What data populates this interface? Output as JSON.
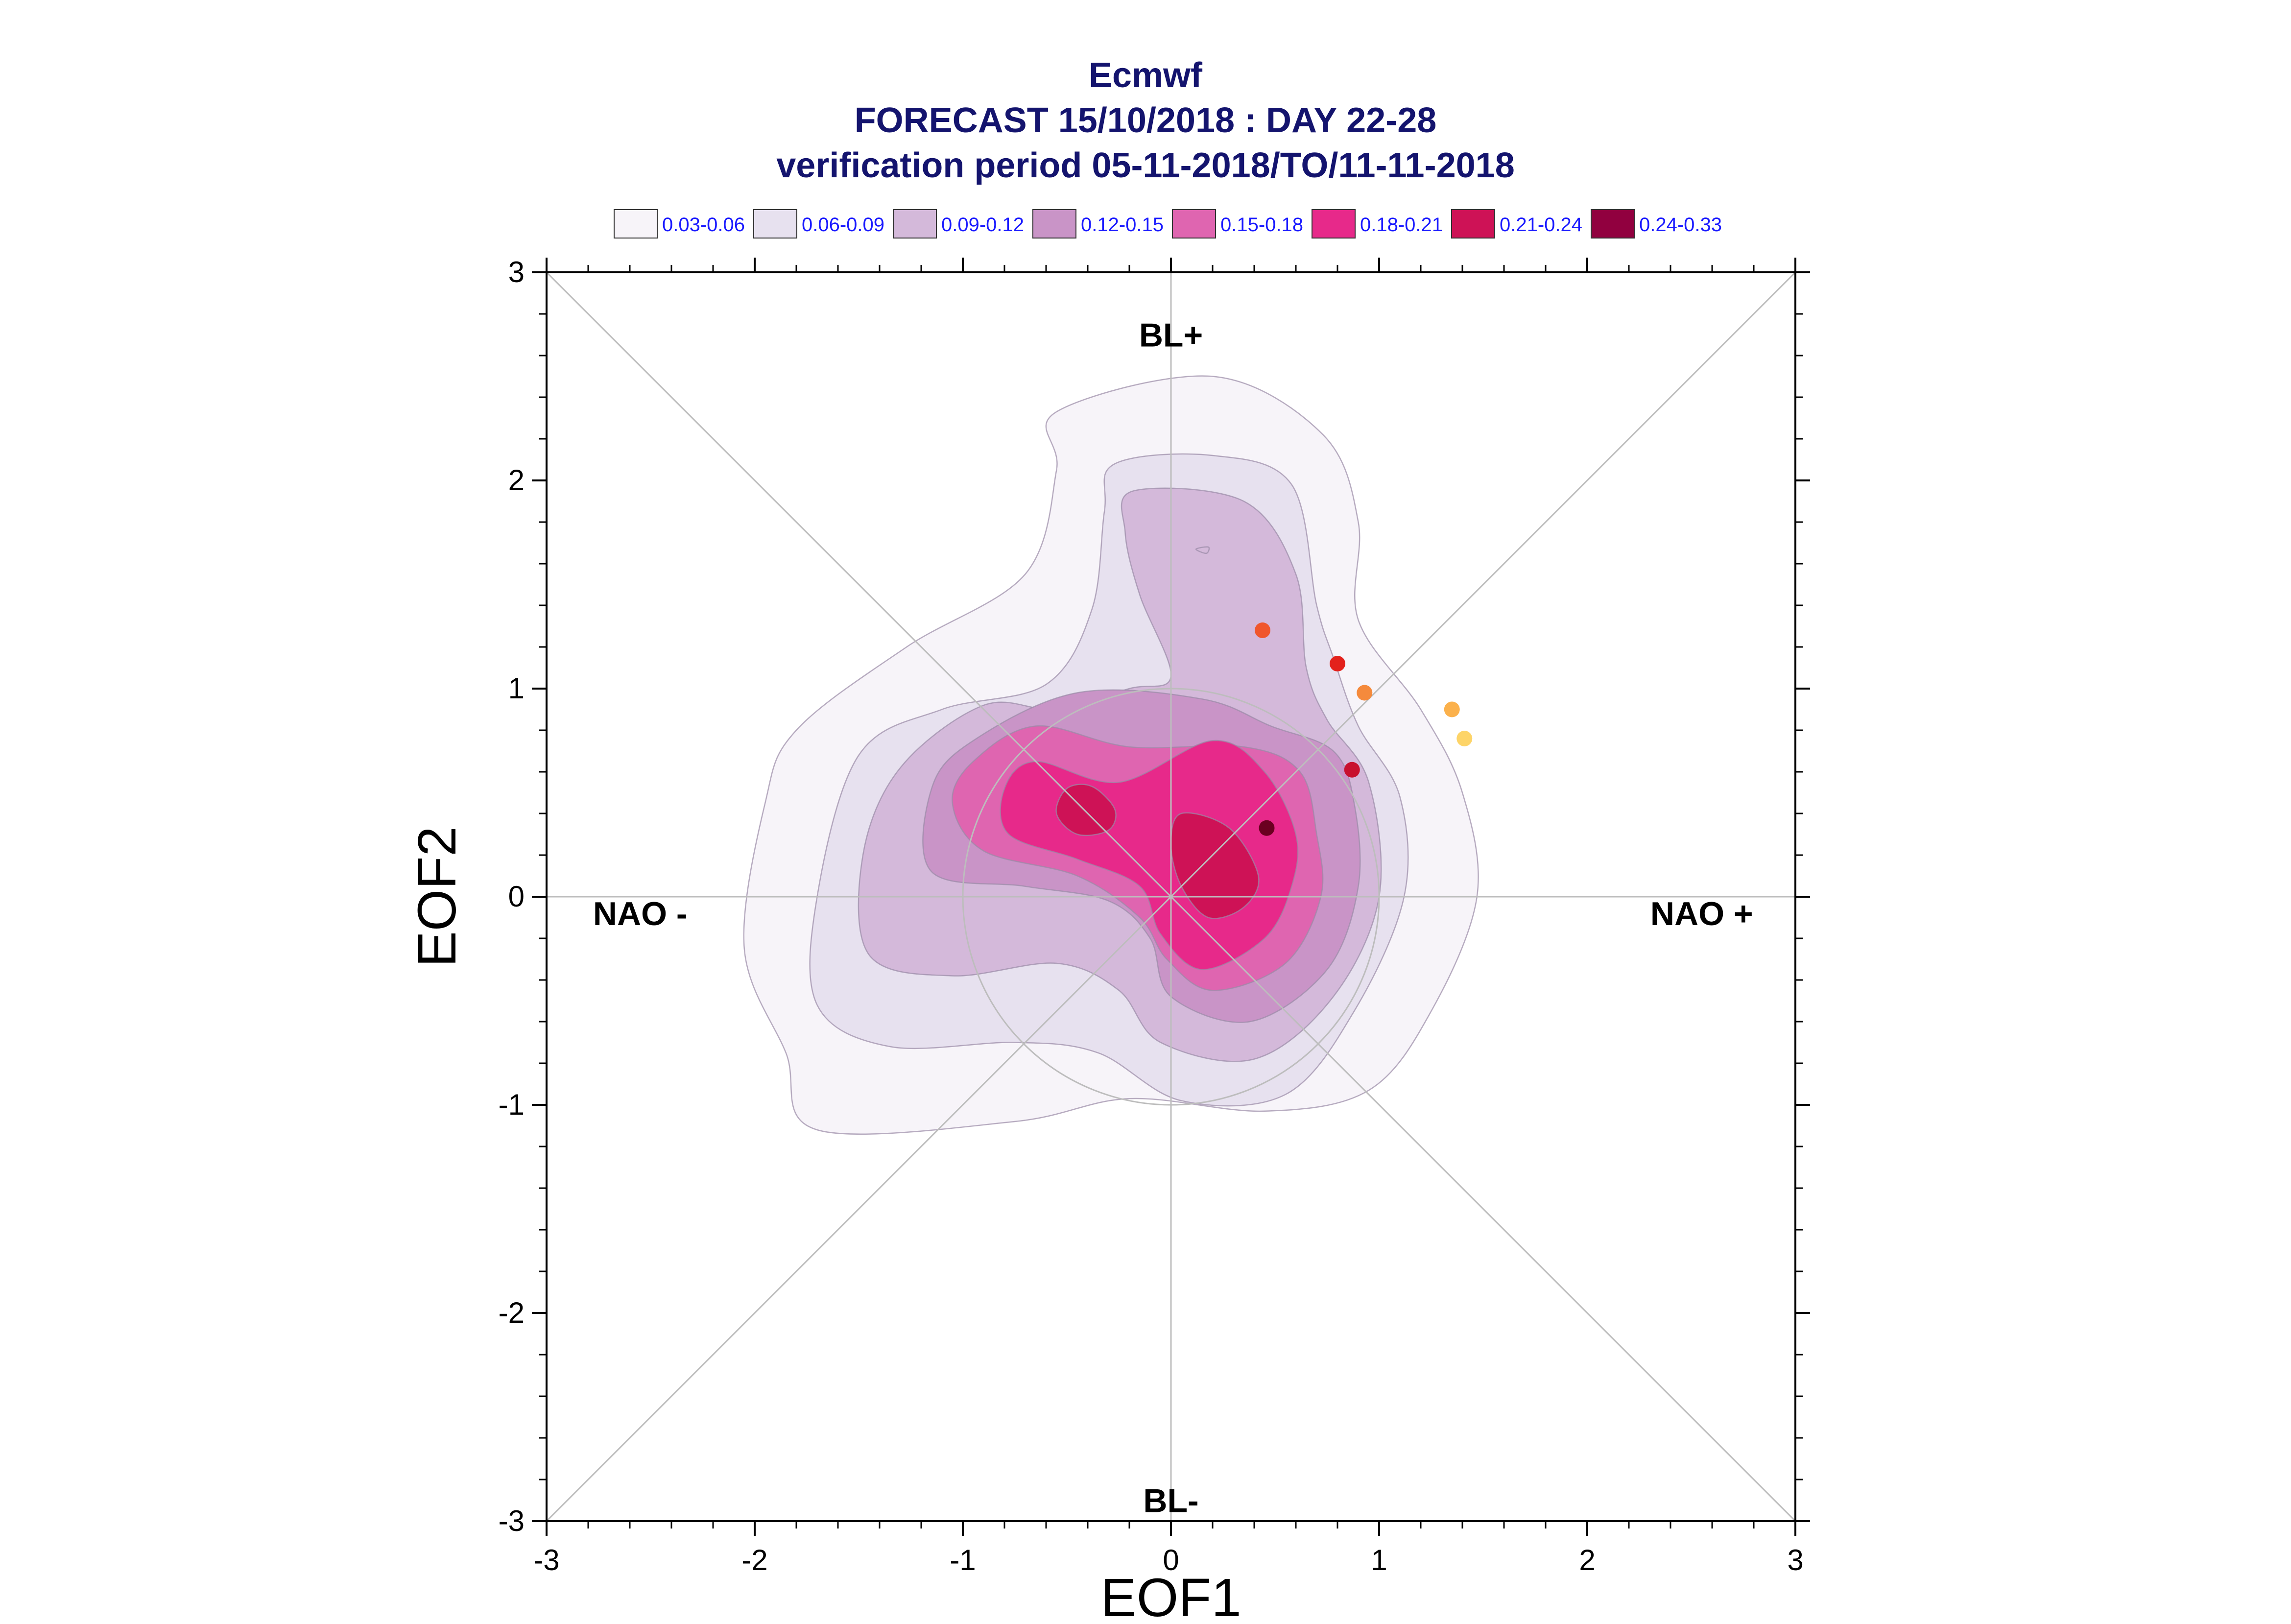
{
  "chart_data": {
    "type": "scatter",
    "title_lines": [
      "Ecmwf",
      "FORECAST 15/10/2018 : DAY 22-28",
      "verification period 05-11-2018/TO/11-11-2018"
    ],
    "xlabel": "EOF1",
    "ylabel": "EOF2",
    "xlim": [
      -3,
      3
    ],
    "ylim": [
      -3,
      3
    ],
    "xticks": [
      -3,
      -2,
      -1,
      0,
      1,
      2,
      3
    ],
    "yticks": [
      -3,
      -2,
      -1,
      0,
      1,
      2,
      3
    ],
    "x_tick_labels": [
      "-3",
      "-2",
      "-1",
      "0",
      "1",
      "2",
      "3"
    ],
    "y_tick_labels": [
      "-3",
      "-2",
      "-1",
      "0",
      "1",
      "2",
      "3"
    ],
    "grid": false,
    "reference_circle_radius": 1,
    "region_labels": [
      {
        "text": "BL+",
        "x": 0,
        "y": 2.7
      },
      {
        "text": "BL-",
        "x": 0,
        "y": -2.9
      },
      {
        "text": "NAO -",
        "x": -2.55,
        "y": -0.08
      },
      {
        "text": "NAO +",
        "x": 2.55,
        "y": -0.08
      }
    ],
    "legend": {
      "placement": "top",
      "entries": [
        {
          "label": "0.03-0.06",
          "color": "#f7f4f9"
        },
        {
          "label": "0.06-0.09",
          "color": "#e7e1ef"
        },
        {
          "label": "0.09-0.12",
          "color": "#d4b9da"
        },
        {
          "label": "0.12-0.15",
          "color": "#c994c7"
        },
        {
          "label": "0.15-0.18",
          "color": "#df65b0"
        },
        {
          "label": "0.18-0.21",
          "color": "#e7298a"
        },
        {
          "label": "0.21-0.24",
          "color": "#ce1256"
        },
        {
          "label": "0.24-0.33",
          "color": "#91003f"
        }
      ]
    },
    "density_contours": [
      {
        "level": "0.03-0.06",
        "color": "#f7f4f9",
        "points": [
          [
            -0.55,
            2.33
          ],
          [
            0.2,
            2.5
          ],
          [
            0.73,
            2.22
          ],
          [
            0.9,
            1.8
          ],
          [
            0.9,
            1.33
          ],
          [
            1.2,
            0.9
          ],
          [
            1.4,
            0.5
          ],
          [
            1.47,
            0.0
          ],
          [
            1.25,
            -0.55
          ],
          [
            0.95,
            -0.93
          ],
          [
            0.45,
            -1.03
          ],
          [
            -0.2,
            -0.97
          ],
          [
            -0.75,
            -1.08
          ],
          [
            -1.7,
            -1.12
          ],
          [
            -1.85,
            -0.75
          ],
          [
            -2.05,
            -0.25
          ],
          [
            -1.95,
            0.45
          ],
          [
            -1.8,
            0.8
          ],
          [
            -1.27,
            1.2
          ],
          [
            -0.7,
            1.55
          ],
          [
            -0.55,
            2.05
          ]
        ]
      },
      {
        "level": "0.06-0.09",
        "color": "#e7e1ef",
        "points": [
          [
            -0.27,
            2.08
          ],
          [
            0.2,
            2.12
          ],
          [
            0.58,
            1.98
          ],
          [
            0.7,
            1.4
          ],
          [
            0.78,
            1.15
          ],
          [
            0.9,
            0.82
          ],
          [
            1.1,
            0.48
          ],
          [
            1.12,
            0.0
          ],
          [
            0.88,
            -0.55
          ],
          [
            0.55,
            -0.95
          ],
          [
            0.05,
            -0.98
          ],
          [
            -0.35,
            -0.75
          ],
          [
            -0.75,
            -0.7
          ],
          [
            -1.35,
            -0.72
          ],
          [
            -1.7,
            -0.52
          ],
          [
            -1.7,
            0.0
          ],
          [
            -1.5,
            0.68
          ],
          [
            -1.1,
            0.9
          ],
          [
            -0.6,
            1.02
          ],
          [
            -0.38,
            1.38
          ],
          [
            -0.32,
            1.85
          ]
        ]
      },
      {
        "level": "0.09-0.12",
        "color": "#d4b9da",
        "points": [
          [
            -0.18,
            1.95
          ],
          [
            0.35,
            1.9
          ],
          [
            0.6,
            1.55
          ],
          [
            0.65,
            1.1
          ],
          [
            0.75,
            0.85
          ],
          [
            0.95,
            0.55
          ],
          [
            1.0,
            0.0
          ],
          [
            0.78,
            -0.48
          ],
          [
            0.4,
            -0.78
          ],
          [
            -0.05,
            -0.7
          ],
          [
            -0.25,
            -0.45
          ],
          [
            -0.55,
            -0.32
          ],
          [
            -1.05,
            -0.38
          ],
          [
            -1.45,
            -0.28
          ],
          [
            -1.48,
            0.2
          ],
          [
            -1.3,
            0.62
          ],
          [
            -0.9,
            0.92
          ],
          [
            -0.55,
            0.9
          ],
          [
            -0.2,
            1.0
          ],
          [
            0.0,
            1.06
          ],
          [
            -0.15,
            1.45
          ],
          [
            -0.22,
            1.75
          ]
        ]
      },
      {
        "level": "0.12-0.15",
        "color": "#c994c7",
        "points": [
          [
            -0.45,
            0.98
          ],
          [
            0.15,
            0.95
          ],
          [
            0.48,
            0.82
          ],
          [
            0.78,
            0.7
          ],
          [
            0.88,
            0.45
          ],
          [
            0.9,
            0.05
          ],
          [
            0.75,
            -0.35
          ],
          [
            0.38,
            -0.6
          ],
          [
            0.0,
            -0.48
          ],
          [
            -0.1,
            -0.2
          ],
          [
            -0.3,
            -0.02
          ],
          [
            -0.7,
            0.05
          ],
          [
            -1.15,
            0.12
          ],
          [
            -1.15,
            0.52
          ],
          [
            -0.95,
            0.75
          ]
        ]
      },
      {
        "level": "0.15-0.18",
        "color": "#df65b0",
        "points": [
          [
            -0.65,
            0.82
          ],
          [
            -0.2,
            0.72
          ],
          [
            0.35,
            0.72
          ],
          [
            0.62,
            0.6
          ],
          [
            0.7,
            0.3
          ],
          [
            0.72,
            0.0
          ],
          [
            0.55,
            -0.32
          ],
          [
            0.2,
            -0.45
          ],
          [
            -0.02,
            -0.3
          ],
          [
            -0.15,
            -0.1
          ],
          [
            -0.45,
            0.1
          ],
          [
            -0.9,
            0.22
          ],
          [
            -1.05,
            0.45
          ],
          [
            -0.95,
            0.65
          ]
        ]
      },
      {
        "level": "0.18-0.21",
        "color": "#e7298a",
        "points": [
          [
            -0.65,
            0.65
          ],
          [
            -0.25,
            0.55
          ],
          [
            0.2,
            0.75
          ],
          [
            0.45,
            0.6
          ],
          [
            0.6,
            0.3
          ],
          [
            0.58,
            0.05
          ],
          [
            0.45,
            -0.2
          ],
          [
            0.15,
            -0.35
          ],
          [
            -0.05,
            -0.18
          ],
          [
            -0.15,
            0.05
          ],
          [
            -0.45,
            0.18
          ],
          [
            -0.78,
            0.3
          ],
          [
            -0.8,
            0.52
          ]
        ]
      },
      {
        "level": "0.21-0.24",
        "color": "#ce1256",
        "points": [
          [
            -0.38,
            0.53
          ],
          [
            -0.27,
            0.42
          ],
          [
            -0.3,
            0.32
          ],
          [
            -0.45,
            0.3
          ],
          [
            -0.55,
            0.4
          ],
          [
            -0.5,
            0.52
          ]
        ]
      },
      {
        "level": "0.21-0.24",
        "color": "#ce1256",
        "points": [
          [
            0.05,
            0.4
          ],
          [
            0.28,
            0.33
          ],
          [
            0.42,
            0.1
          ],
          [
            0.35,
            -0.05
          ],
          [
            0.18,
            -0.1
          ],
          [
            0.05,
            0.05
          ],
          [
            0.0,
            0.25
          ]
        ]
      },
      {
        "level": "0.09-0.12",
        "color": "#d4b9da",
        "points": [
          [
            0.12,
            1.67
          ],
          [
            0.18,
            1.68
          ],
          [
            0.17,
            1.65
          ]
        ]
      }
    ],
    "points": [
      {
        "x": 0.44,
        "y": 1.28,
        "color": "#f0562c"
      },
      {
        "x": 0.8,
        "y": 1.12,
        "color": "#e3211c"
      },
      {
        "x": 0.93,
        "y": 0.98,
        "color": "#f58a3c"
      },
      {
        "x": 1.35,
        "y": 0.9,
        "color": "#fbb14c"
      },
      {
        "x": 1.41,
        "y": 0.76,
        "color": "#fdd468"
      },
      {
        "x": 0.87,
        "y": 0.61,
        "color": "#c8102e"
      },
      {
        "x": 0.46,
        "y": 0.33,
        "color": "#6b0020"
      }
    ]
  }
}
